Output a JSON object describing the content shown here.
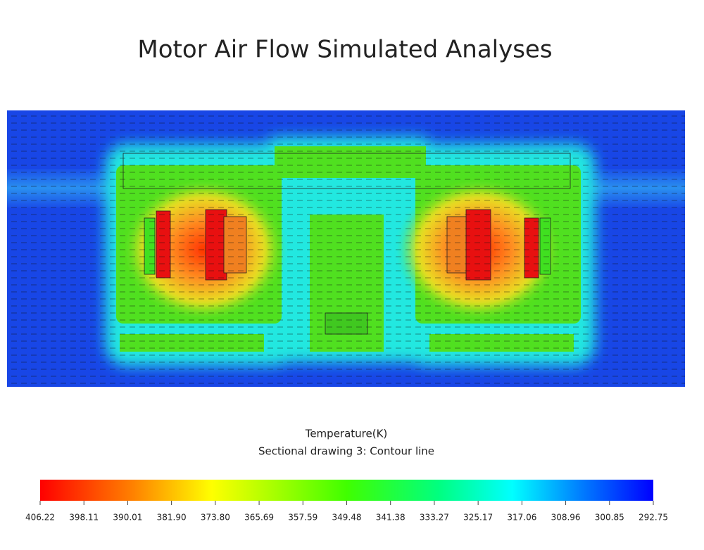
{
  "title": "Motor Air Flow Simulated Analyses",
  "legend": {
    "quantity": "Temperature(K)",
    "caption": "Sectional drawing 3: Contour line",
    "ticks": [
      "406.22",
      "398.11",
      "390.01",
      "381.90",
      "373.80",
      "365.69",
      "357.59",
      "349.48",
      "341.38",
      "333.27",
      "325.17",
      "317.06",
      "308.96",
      "300.85",
      "292.75"
    ]
  }
}
